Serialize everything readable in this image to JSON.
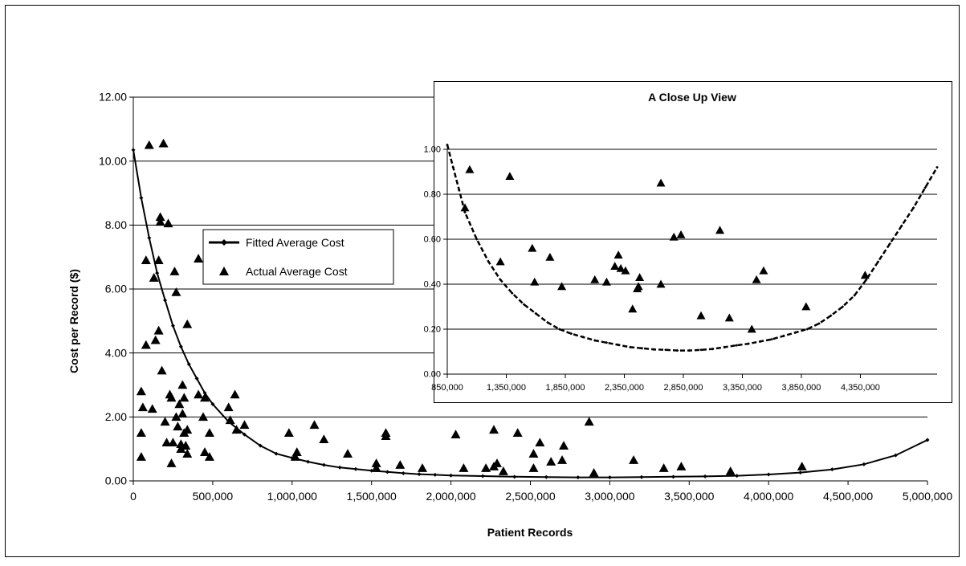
{
  "chart_data": [
    {
      "type": "scatter",
      "xlabel": "Patient Records",
      "ylabel": "Cost per Record ($)",
      "xlim": [
        0,
        5000000
      ],
      "ylim": [
        0,
        12
      ],
      "x_ticks": [
        "0",
        "500,000",
        "1,000,000",
        "1,500,000",
        "2,000,000",
        "2,500,000",
        "3,000,000",
        "3,500,000",
        "4,000,000",
        "4,500,000",
        "5,000,000"
      ],
      "y_ticks": [
        "0.00",
        "2.00",
        "4.00",
        "6.00",
        "8.00",
        "10.00",
        "12.00"
      ],
      "grid": "horizontal",
      "legend_position": "center-left",
      "series": [
        {
          "name": "Fitted Average Cost",
          "marker": "diamond-line",
          "points": [
            [
              0,
              10.35
            ],
            [
              50000,
              8.85
            ],
            [
              100000,
              7.6
            ],
            [
              150000,
              6.5
            ],
            [
              200000,
              5.65
            ],
            [
              250000,
              4.85
            ],
            [
              300000,
              4.2
            ],
            [
              350000,
              3.65
            ],
            [
              400000,
              3.2
            ],
            [
              450000,
              2.75
            ],
            [
              500000,
              2.4
            ],
            [
              600000,
              1.85
            ],
            [
              700000,
              1.45
            ],
            [
              800000,
              1.1
            ],
            [
              900000,
              0.85
            ],
            [
              1000000,
              0.72
            ],
            [
              1100000,
              0.6
            ],
            [
              1200000,
              0.5
            ],
            [
              1300000,
              0.42
            ],
            [
              1400000,
              0.37
            ],
            [
              1500000,
              0.32
            ],
            [
              1600000,
              0.28
            ],
            [
              1700000,
              0.24
            ],
            [
              1800000,
              0.21
            ],
            [
              1900000,
              0.19
            ],
            [
              2000000,
              0.17
            ],
            [
              2200000,
              0.15
            ],
            [
              2400000,
              0.13
            ],
            [
              2600000,
              0.12
            ],
            [
              2800000,
              0.11
            ],
            [
              3000000,
              0.11
            ],
            [
              3200000,
              0.12
            ],
            [
              3400000,
              0.13
            ],
            [
              3600000,
              0.14
            ],
            [
              3800000,
              0.16
            ],
            [
              4000000,
              0.2
            ],
            [
              4200000,
              0.26
            ],
            [
              4400000,
              0.36
            ],
            [
              4600000,
              0.52
            ],
            [
              4800000,
              0.8
            ],
            [
              5000000,
              1.28
            ]
          ]
        },
        {
          "name": "Actual Average Cost",
          "marker": "triangle",
          "points": [
            [
              50000,
              2.8
            ],
            [
              50000,
              1.5
            ],
            [
              50000,
              0.75
            ],
            [
              60000,
              2.3
            ],
            [
              80000,
              4.25
            ],
            [
              80000,
              6.9
            ],
            [
              100000,
              10.5
            ],
            [
              120000,
              2.25
            ],
            [
              130000,
              6.35
            ],
            [
              140000,
              4.4
            ],
            [
              160000,
              6.9
            ],
            [
              160000,
              4.7
            ],
            [
              170000,
              8.25
            ],
            [
              170000,
              8.1
            ],
            [
              180000,
              3.45
            ],
            [
              190000,
              10.55
            ],
            [
              200000,
              1.85
            ],
            [
              210000,
              1.2
            ],
            [
              220000,
              8.05
            ],
            [
              230000,
              2.7
            ],
            [
              240000,
              2.6
            ],
            [
              240000,
              0.55
            ],
            [
              250000,
              1.2
            ],
            [
              260000,
              6.55
            ],
            [
              270000,
              5.9
            ],
            [
              270000,
              2.0
            ],
            [
              280000,
              1.7
            ],
            [
              290000,
              2.4
            ],
            [
              300000,
              1.15
            ],
            [
              300000,
              1.0
            ],
            [
              310000,
              3.0
            ],
            [
              310000,
              2.1
            ],
            [
              320000,
              2.6
            ],
            [
              320000,
              1.5
            ],
            [
              330000,
              1.1
            ],
            [
              340000,
              4.9
            ],
            [
              340000,
              1.6
            ],
            [
              340000,
              0.85
            ],
            [
              410000,
              6.95
            ],
            [
              410000,
              2.7
            ],
            [
              440000,
              2.0
            ],
            [
              450000,
              2.6
            ],
            [
              450000,
              0.9
            ],
            [
              480000,
              1.5
            ],
            [
              480000,
              0.75
            ],
            [
              600000,
              2.3
            ],
            [
              610000,
              1.9
            ],
            [
              640000,
              2.7
            ],
            [
              650000,
              1.6
            ],
            [
              700000,
              1.75
            ],
            [
              980000,
              1.5
            ],
            [
              1030000,
              0.9
            ],
            [
              1020000,
              0.75
            ],
            [
              1140000,
              1.75
            ],
            [
              1200000,
              1.3
            ],
            [
              1350000,
              0.85
            ],
            [
              1530000,
              0.55
            ],
            [
              1530000,
              0.4
            ],
            [
              1590000,
              1.5
            ],
            [
              1590000,
              1.4
            ],
            [
              1680000,
              0.5
            ],
            [
              1820000,
              0.4
            ],
            [
              2030000,
              1.45
            ],
            [
              2080000,
              0.4
            ],
            [
              2220000,
              0.4
            ],
            [
              2270000,
              1.6
            ],
            [
              2270000,
              0.45
            ],
            [
              2290000,
              0.55
            ],
            [
              2330000,
              0.3
            ],
            [
              2420000,
              1.5
            ],
            [
              2520000,
              0.85
            ],
            [
              2520000,
              0.4
            ],
            [
              2560000,
              1.2
            ],
            [
              2630000,
              0.6
            ],
            [
              2700000,
              0.65
            ],
            [
              2710000,
              1.1
            ],
            [
              2870000,
              1.85
            ],
            [
              2900000,
              0.25
            ],
            [
              3150000,
              0.65
            ],
            [
              3340000,
              0.4
            ],
            [
              3450000,
              0.45
            ],
            [
              3760000,
              0.3
            ],
            [
              4210000,
              0.45
            ]
          ]
        }
      ]
    },
    {
      "type": "scatter",
      "title": "A Close Up View",
      "xlim": [
        850000,
        5000000
      ],
      "ylim": [
        0,
        1
      ],
      "x_ticks": [
        "850,000",
        "1,350,000",
        "1,850,000",
        "2,350,000",
        "2,850,000",
        "3,350,000",
        "3,850,000",
        "4,350,000"
      ],
      "y_ticks": [
        "0.00",
        "0.20",
        "0.40",
        "0.60",
        "0.80",
        "1.00"
      ],
      "grid": "horizontal",
      "series": [
        {
          "marker": "diamond-line",
          "points": [
            [
              850000,
              1.02
            ],
            [
              900000,
              0.92
            ],
            [
              950000,
              0.82
            ],
            [
              1000000,
              0.72
            ],
            [
              1100000,
              0.6
            ],
            [
              1200000,
              0.5
            ],
            [
              1300000,
              0.42
            ],
            [
              1400000,
              0.36
            ],
            [
              1500000,
              0.31
            ],
            [
              1600000,
              0.27
            ],
            [
              1700000,
              0.23
            ],
            [
              1800000,
              0.2
            ],
            [
              1900000,
              0.18
            ],
            [
              2000000,
              0.165
            ],
            [
              2100000,
              0.15
            ],
            [
              2200000,
              0.14
            ],
            [
              2300000,
              0.13
            ],
            [
              2400000,
              0.12
            ],
            [
              2500000,
              0.115
            ],
            [
              2600000,
              0.11
            ],
            [
              2700000,
              0.108
            ],
            [
              2800000,
              0.105
            ],
            [
              2900000,
              0.105
            ],
            [
              3000000,
              0.108
            ],
            [
              3100000,
              0.112
            ],
            [
              3200000,
              0.12
            ],
            [
              3300000,
              0.128
            ],
            [
              3400000,
              0.135
            ],
            [
              3500000,
              0.145
            ],
            [
              3600000,
              0.155
            ],
            [
              3700000,
              0.17
            ],
            [
              3800000,
              0.185
            ],
            [
              3900000,
              0.2
            ],
            [
              4000000,
              0.225
            ],
            [
              4100000,
              0.26
            ],
            [
              4200000,
              0.3
            ],
            [
              4300000,
              0.35
            ],
            [
              4400000,
              0.42
            ],
            [
              4500000,
              0.5
            ],
            [
              4600000,
              0.58
            ],
            [
              4700000,
              0.66
            ],
            [
              4800000,
              0.74
            ],
            [
              4900000,
              0.83
            ],
            [
              5000000,
              0.92
            ]
          ]
        },
        {
          "marker": "triangle",
          "points": [
            [
              1000000,
              0.74
            ],
            [
              1040000,
              0.91
            ],
            [
              1300000,
              0.5
            ],
            [
              1380000,
              0.88
            ],
            [
              1570000,
              0.56
            ],
            [
              1590000,
              0.41
            ],
            [
              1720000,
              0.52
            ],
            [
              1820000,
              0.39
            ],
            [
              2100000,
              0.42
            ],
            [
              2200000,
              0.41
            ],
            [
              2270000,
              0.48
            ],
            [
              2300000,
              0.53
            ],
            [
              2320000,
              0.47
            ],
            [
              2360000,
              0.46
            ],
            [
              2420000,
              0.29
            ],
            [
              2460000,
              0.38
            ],
            [
              2470000,
              0.39
            ],
            [
              2480000,
              0.43
            ],
            [
              2660000,
              0.85
            ],
            [
              2660000,
              0.4
            ],
            [
              2770000,
              0.61
            ],
            [
              2830000,
              0.62
            ],
            [
              3000000,
              0.26
            ],
            [
              3160000,
              0.64
            ],
            [
              3240000,
              0.25
            ],
            [
              3430000,
              0.2
            ],
            [
              3470000,
              0.42
            ],
            [
              3530000,
              0.46
            ],
            [
              3890000,
              0.3
            ],
            [
              4390000,
              0.44
            ]
          ]
        }
      ]
    }
  ]
}
